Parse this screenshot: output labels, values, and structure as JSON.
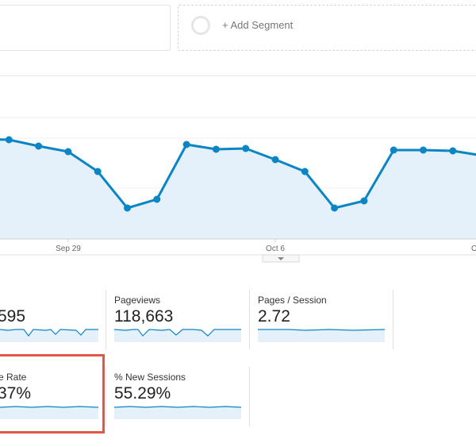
{
  "segments": {
    "add_label": "+ Add Segment",
    "add_icon": "circle-icon"
  },
  "chart_data": {
    "type": "area",
    "x_tick_labels": [
      "Sep 29",
      "Oct 6",
      "O"
    ],
    "values": [
      175,
      176,
      184,
      191,
      216,
      262,
      251,
      182,
      188,
      187,
      201,
      216,
      262,
      253,
      189,
      189,
      190,
      196
    ],
    "line_color": "#0c85c4",
    "fill_color": "#e4f1fa"
  },
  "metrics": [
    {
      "label": "",
      "value": "595"
    },
    {
      "label": "Pageviews",
      "value": "118,663"
    },
    {
      "label": "Pages / Session",
      "value": "2.72"
    },
    {
      "label": "e Rate",
      "value": "37%"
    },
    {
      "label": "% New Sessions",
      "value": "55.29%"
    }
  ],
  "colors": {
    "accent": "#0c85c4",
    "highlight": "#e0574a"
  }
}
